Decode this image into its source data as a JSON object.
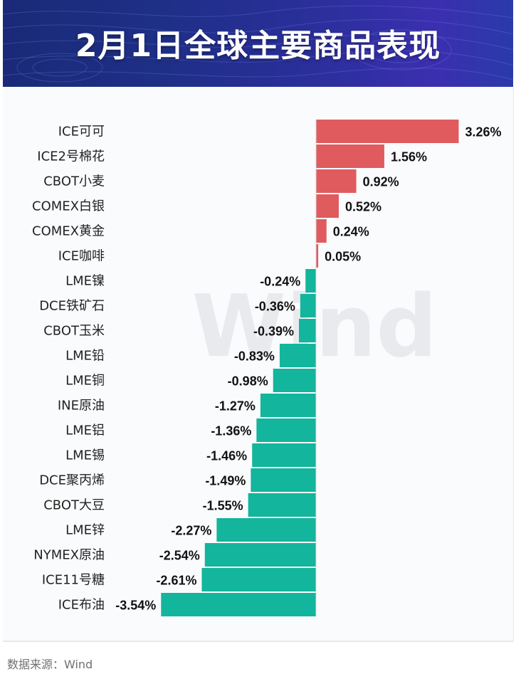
{
  "header": {
    "title": "2月1日全球主要商品表现"
  },
  "watermark": "Wind",
  "source": "数据来源：Wind",
  "colors": {
    "positive": "#e05b5e",
    "negative": "#13b59c",
    "banner": "#1e2f86"
  },
  "chart_data": {
    "type": "bar",
    "orientation": "horizontal",
    "title": "2月1日全球主要商品表现",
    "unit": "%",
    "categories": [
      "ICE可可",
      "ICE2号棉花",
      "CBOT小麦",
      "COMEX白银",
      "COMEX黄金",
      "ICE咖啡",
      "LME镍",
      "DCE铁矿石",
      "CBOT玉米",
      "LME铅",
      "LME铜",
      "INE原油",
      "LME铝",
      "LME锡",
      "DCE聚丙烯",
      "CBOT大豆",
      "LME锌",
      "NYMEX原油",
      "ICE11号糖",
      "ICE布油"
    ],
    "values": [
      3.26,
      1.56,
      0.92,
      0.52,
      0.24,
      0.05,
      -0.24,
      -0.36,
      -0.39,
      -0.83,
      -0.98,
      -1.27,
      -1.36,
      -1.46,
      -1.49,
      -1.55,
      -2.27,
      -2.54,
      -2.61,
      -3.54
    ],
    "labels": [
      "3.26%",
      "1.56%",
      "0.92%",
      "0.52%",
      "0.24%",
      "0.05%",
      "-0.24%",
      "-0.36%",
      "-0.39%",
      "-0.83%",
      "-0.98%",
      "-1.27%",
      "-1.36%",
      "-1.46%",
      "-1.49%",
      "-1.55%",
      "-2.27%",
      "-2.54%",
      "-2.61%",
      "-3.54%"
    ]
  }
}
